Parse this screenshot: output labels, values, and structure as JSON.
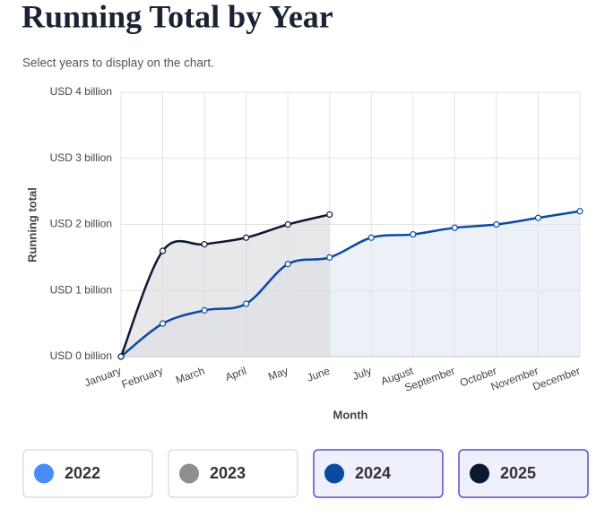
{
  "header": {
    "title": "Running Total by Year",
    "subtitle": "Select years to display on the chart."
  },
  "chart_data": {
    "type": "line",
    "categories": [
      "January",
      "February",
      "March",
      "April",
      "May",
      "June",
      "July",
      "August",
      "September",
      "October",
      "November",
      "December"
    ],
    "series": [
      {
        "name": "2024",
        "color": "#0b4aa0",
        "area_color": "#dfe6f2",
        "selected": true,
        "values": [
          0,
          0.5,
          0.7,
          0.8,
          1.4,
          1.5,
          1.8,
          1.85,
          1.95,
          2.0,
          2.1,
          2.2
        ]
      },
      {
        "name": "2025",
        "color": "#0a1a33",
        "area_color": "#d8d9dc",
        "selected": true,
        "values": [
          0,
          1.6,
          1.7,
          1.8,
          2.0,
          2.15,
          null,
          null,
          null,
          null,
          null,
          null
        ]
      }
    ],
    "other_years": [
      {
        "name": "2022",
        "color": "#4a8cf7",
        "selected": false
      },
      {
        "name": "2023",
        "color": "#8f8f8f",
        "selected": false
      }
    ],
    "ylim": [
      0,
      4
    ],
    "yticks": [
      {
        "value": 0,
        "label": "USD 0 billion"
      },
      {
        "value": 1,
        "label": "USD 1 billion"
      },
      {
        "value": 2,
        "label": "USD 2 billion"
      },
      {
        "value": 3,
        "label": "USD 3 billion"
      },
      {
        "value": 4,
        "label": "USD 4 billion"
      }
    ],
    "xlabel": "Month",
    "ylabel": "Running total",
    "grid": true
  }
}
